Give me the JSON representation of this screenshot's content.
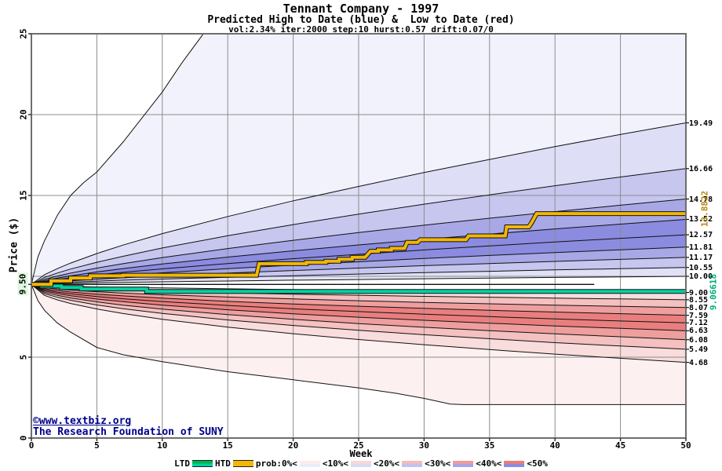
{
  "chart_data": {
    "type": "area",
    "title": "Tennant Company - 1997",
    "subtitle": "Predicted High to Date (blue) &  Low to Date (red)",
    "params_line": "vol:2.34% iter:2000 step:10 hurst:0.57 drift:0.07/0",
    "xlabel": "Week",
    "ylabel": "Price ($)",
    "xlim": [
      0,
      50
    ],
    "ylim": [
      0,
      25
    ],
    "grid": true,
    "start_price": 9.5,
    "start_label": "9.50",
    "x_ticks": [
      {
        "value": 0,
        "label": "0"
      },
      {
        "value": 5,
        "label": "5"
      },
      {
        "value": 10,
        "label": "10"
      },
      {
        "value": 15,
        "label": "15"
      },
      {
        "value": 20,
        "label": "20"
      },
      {
        "value": 25,
        "label": "25"
      },
      {
        "value": 30,
        "label": "30"
      },
      {
        "value": 35,
        "label": "35"
      },
      {
        "value": 40,
        "label": "40"
      },
      {
        "value": 45,
        "label": "45"
      },
      {
        "value": 50,
        "label": "50"
      }
    ],
    "y_ticks": [
      {
        "value": 25,
        "label": "25"
      },
      {
        "value": 20,
        "label": "20"
      },
      {
        "value": 15,
        "label": "15"
      },
      {
        "value": 5,
        "label": "5"
      },
      {
        "value": 0,
        "label": "0"
      }
    ],
    "right_labels": [
      "19.49",
      "16.66",
      "14.78",
      "13.52",
      "12.57",
      "11.81",
      "11.17",
      "10.55",
      "10.00",
      "9.00",
      "8.55",
      "8.07",
      "7.59",
      "7.12",
      "6.63",
      "6.08",
      "5.49",
      "4.68"
    ],
    "weeks": [
      0,
      1,
      2,
      3,
      5,
      7,
      10,
      15,
      20,
      25,
      30,
      35,
      40,
      45,
      50
    ],
    "upper": [
      {
        "label": "19.49",
        "prices": [
          9.5,
          10.1,
          10.48,
          10.82,
          11.41,
          11.93,
          12.64,
          13.7,
          14.67,
          15.56,
          16.42,
          17.23,
          18.02,
          18.77,
          19.49
        ]
      },
      {
        "label": "16.66",
        "prices": [
          9.5,
          9.93,
          10.21,
          10.45,
          10.87,
          11.24,
          11.75,
          12.51,
          13.2,
          13.85,
          14.46,
          15.04,
          15.6,
          16.14,
          16.66
        ]
      },
      {
        "label": "14.78",
        "prices": [
          9.5,
          9.82,
          10.02,
          10.2,
          10.51,
          10.78,
          11.16,
          11.72,
          12.23,
          12.71,
          13.16,
          13.59,
          14.0,
          14.4,
          14.78
        ]
      },
      {
        "label": "13.52",
        "prices": [
          9.5,
          9.74,
          9.9,
          10.03,
          10.27,
          10.48,
          10.76,
          11.19,
          11.58,
          11.94,
          12.28,
          12.61,
          12.93,
          13.23,
          13.52
        ]
      },
      {
        "label": "12.57",
        "prices": [
          9.5,
          9.68,
          9.8,
          9.91,
          10.09,
          10.25,
          10.46,
          10.79,
          11.09,
          11.36,
          11.63,
          11.88,
          12.12,
          12.35,
          12.57
        ]
      },
      {
        "label": "11.81",
        "prices": [
          9.5,
          9.64,
          9.73,
          9.8,
          9.94,
          10.06,
          10.22,
          10.47,
          10.69,
          10.9,
          11.1,
          11.29,
          11.47,
          11.64,
          11.81
        ]
      },
      {
        "label": "11.17",
        "prices": [
          9.5,
          9.6,
          9.66,
          9.72,
          9.82,
          9.91,
          10.02,
          10.2,
          10.36,
          10.51,
          10.66,
          10.79,
          10.92,
          11.05,
          11.17
        ]
      },
      {
        "label": "10.55",
        "prices": [
          9.5,
          9.56,
          9.6,
          9.64,
          9.7,
          9.76,
          9.83,
          9.94,
          10.04,
          10.14,
          10.23,
          10.31,
          10.4,
          10.47,
          10.55
        ]
      },
      {
        "label": "10.00",
        "prices": [
          9.5,
          9.53,
          9.55,
          9.57,
          9.6,
          9.62,
          9.66,
          9.71,
          9.76,
          9.8,
          9.85,
          9.89,
          9.93,
          9.96,
          10.0
        ]
      }
    ],
    "upper_outer": [
      [
        0,
        9.5
      ],
      [
        0.5,
        11.2
      ],
      [
        1,
        12.2
      ],
      [
        2,
        13.8
      ],
      [
        3,
        15.0
      ],
      [
        4,
        15.8
      ],
      [
        5,
        16.45
      ],
      [
        7,
        18.3
      ],
      [
        10,
        21.4
      ],
      [
        11.5,
        23.2
      ],
      [
        13.5,
        25.4
      ]
    ],
    "lower": [
      {
        "label": "9.00",
        "prices": [
          9.5,
          9.43,
          9.4,
          9.38,
          9.34,
          9.31,
          9.28,
          9.23,
          9.18,
          9.15,
          9.11,
          9.08,
          9.05,
          9.03,
          9.0
        ]
      },
      {
        "label": "8.55",
        "prices": [
          9.5,
          9.37,
          9.31,
          9.27,
          9.2,
          9.14,
          9.08,
          8.98,
          8.9,
          8.83,
          8.76,
          8.71,
          8.65,
          8.6,
          8.55
        ]
      },
      {
        "label": "8.07",
        "prices": [
          9.5,
          9.3,
          9.21,
          9.15,
          9.05,
          8.96,
          8.86,
          8.72,
          8.6,
          8.49,
          8.39,
          8.3,
          8.22,
          8.14,
          8.07
        ]
      },
      {
        "label": "7.59",
        "prices": [
          9.5,
          9.23,
          9.12,
          9.03,
          8.9,
          8.79,
          8.65,
          8.45,
          8.29,
          8.15,
          8.02,
          7.9,
          7.79,
          7.69,
          7.59
        ]
      },
      {
        "label": "7.12",
        "prices": [
          9.5,
          9.16,
          9.02,
          8.92,
          8.75,
          8.61,
          8.44,
          8.2,
          7.99,
          7.82,
          7.66,
          7.51,
          7.37,
          7.24,
          7.12
        ]
      },
      {
        "label": "6.63",
        "prices": [
          9.5,
          9.09,
          8.93,
          8.8,
          8.59,
          8.43,
          8.22,
          7.93,
          7.68,
          7.47,
          7.28,
          7.1,
          6.93,
          6.78,
          6.63
        ]
      },
      {
        "label": "6.08",
        "prices": [
          9.5,
          9.02,
          8.82,
          8.66,
          8.42,
          8.22,
          7.97,
          7.63,
          7.34,
          7.08,
          6.85,
          6.64,
          6.44,
          6.26,
          6.08
        ]
      },
      {
        "label": "5.49",
        "prices": [
          9.5,
          8.93,
          8.7,
          8.52,
          8.23,
          8.0,
          7.71,
          7.3,
          6.96,
          6.66,
          6.39,
          6.14,
          5.9,
          5.69,
          5.49
        ]
      },
      {
        "label": "4.68",
        "prices": [
          9.5,
          8.82,
          8.54,
          8.32,
          7.98,
          7.7,
          7.34,
          6.86,
          6.45,
          6.09,
          5.77,
          5.47,
          5.19,
          4.93,
          4.68
        ]
      }
    ],
    "lower_outer": [
      [
        0,
        9.5
      ],
      [
        0.5,
        8.5
      ],
      [
        1,
        7.9
      ],
      [
        2,
        7.1
      ],
      [
        3,
        6.55
      ],
      [
        5,
        5.6
      ],
      [
        7,
        5.15
      ],
      [
        10,
        4.72
      ],
      [
        15,
        4.1
      ],
      [
        20,
        3.6
      ],
      [
        25,
        3.1
      ],
      [
        28,
        2.75
      ],
      [
        30,
        2.45
      ],
      [
        32,
        2.1
      ],
      [
        33,
        2.07
      ],
      [
        50,
        2.07
      ]
    ],
    "flat_line": [
      [
        0,
        9.5
      ],
      [
        43,
        9.5
      ]
    ],
    "htd": {
      "name": "HTD",
      "final_label": "13.8822",
      "color": "#f2b705",
      "label_color": "#b8860b",
      "steps": [
        [
          0,
          9.5
        ],
        [
          1.5,
          9.5
        ],
        [
          1.5,
          9.72
        ],
        [
          3,
          9.72
        ],
        [
          3,
          9.9
        ],
        [
          4.5,
          9.9
        ],
        [
          4.5,
          10.03
        ],
        [
          7,
          10.03
        ],
        [
          7,
          10.07
        ],
        [
          17.2,
          10.07
        ],
        [
          17.4,
          10.78
        ],
        [
          21,
          10.78
        ],
        [
          21,
          10.86
        ],
        [
          22.5,
          10.86
        ],
        [
          22.5,
          10.93
        ],
        [
          23.5,
          10.93
        ],
        [
          23.5,
          11.06
        ],
        [
          24.5,
          11.06
        ],
        [
          24.5,
          11.18
        ],
        [
          25.5,
          11.18
        ],
        [
          25.9,
          11.55
        ],
        [
          26.5,
          11.55
        ],
        [
          26.5,
          11.63
        ],
        [
          27.5,
          11.63
        ],
        [
          27.5,
          11.73
        ],
        [
          28.5,
          11.73
        ],
        [
          28.7,
          12.1
        ],
        [
          29.5,
          12.1
        ],
        [
          29.7,
          12.26
        ],
        [
          33.2,
          12.26
        ],
        [
          33.4,
          12.5
        ],
        [
          36.2,
          12.5
        ],
        [
          36.3,
          13.06
        ],
        [
          38,
          13.06
        ],
        [
          38.2,
          13.3
        ],
        [
          38.6,
          13.88
        ],
        [
          50,
          13.88
        ]
      ]
    },
    "ltd": {
      "name": "LTD",
      "final_label": "9.06618",
      "color": "#00d2a2",
      "label_color": "#00a878",
      "steps": [
        [
          0,
          9.5
        ],
        [
          0.8,
          9.5
        ],
        [
          0.8,
          9.4
        ],
        [
          2.3,
          9.4
        ],
        [
          2.3,
          9.31
        ],
        [
          3.8,
          9.31
        ],
        [
          3.8,
          9.22
        ],
        [
          8.8,
          9.22
        ],
        [
          8.8,
          9.066
        ],
        [
          50,
          9.066
        ]
      ]
    },
    "upper_band_colors": [
      "#f2f2fc",
      "#dedef6",
      "#c6c6ef",
      "#a8a8e7",
      "#8b8be0",
      "#8b8be0",
      "#a8a8e7",
      "#c6c6ef",
      "#e0e0f6"
    ],
    "lower_band_colors": [
      "#f9dcdc",
      "#f4c0c0",
      "#ef9e9e",
      "#ea7e7e",
      "#ea7e7e",
      "#ef9e9e",
      "#f4c0c0",
      "#f9dcdc",
      "#fdf0f0"
    ],
    "grid_color": "#8c8c8c",
    "frame_color": "#6e6e6e",
    "curve_color": "#111111"
  },
  "watermark": {
    "line1": "©www.textbiz.org",
    "line2": "The Research Foundation of SUNY"
  },
  "legend": {
    "ltd_label": "LTD",
    "htd_label": "HTD",
    "prob_label": "prob:0%<",
    "items": [
      {
        "label": "<10%<",
        "red": "#fcecec",
        "blue": "#ececfa"
      },
      {
        "label": "<20%<",
        "red": "#f8d8d8",
        "blue": "#dadaf4"
      },
      {
        "label": "<30%<",
        "red": "#f3bcbc",
        "blue": "#c2c2ee"
      },
      {
        "label": "<40%<",
        "red": "#ee9c9c",
        "blue": "#a6a6e7"
      },
      {
        "label": "<50%",
        "red": "#e97c7c",
        "blue": "#8a8ae0"
      }
    ]
  }
}
